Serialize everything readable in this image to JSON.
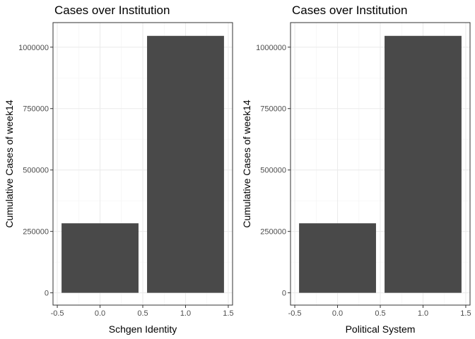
{
  "colors": {
    "bar": "#494949",
    "panel_border": "#333333",
    "grid_major": "#ebebeb",
    "grid_minor": "#f3f3f3",
    "tick": "#333333"
  },
  "chart_data": [
    {
      "type": "bar",
      "title": "Cases over Institution",
      "xlabel": "Schgen Identity",
      "ylabel": "Cumulative Cases of week14",
      "x": [
        0,
        1
      ],
      "bar_width": 0.9,
      "values": [
        283000,
        1046000
      ],
      "xlim": [
        -0.55,
        1.55
      ],
      "ylim": [
        -50000,
        1100000
      ],
      "xticks": [
        -0.5,
        0.0,
        0.5,
        1.0,
        1.5
      ],
      "xtick_labels": [
        "-0.5",
        "0.0",
        "0.5",
        "1.0",
        "1.5"
      ],
      "yticks": [
        0,
        250000,
        500000,
        750000,
        1000000
      ],
      "ytick_labels": [
        "0",
        "250000",
        "500000",
        "750000",
        "1000000"
      ],
      "grid": true,
      "legend": "none"
    },
    {
      "type": "bar",
      "title": "Cases over Institution",
      "xlabel": "Political System",
      "ylabel": "Cumulative Cases of week14",
      "x": [
        0,
        1
      ],
      "bar_width": 0.9,
      "values": [
        283000,
        1046000
      ],
      "xlim": [
        -0.55,
        1.55
      ],
      "ylim": [
        -50000,
        1100000
      ],
      "xticks": [
        -0.5,
        0.0,
        0.5,
        1.0,
        1.5
      ],
      "xtick_labels": [
        "-0.5",
        "0.0",
        "0.5",
        "1.0",
        "1.5"
      ],
      "yticks": [
        0,
        250000,
        500000,
        750000,
        1000000
      ],
      "ytick_labels": [
        "0",
        "250000",
        "500000",
        "750000",
        "1000000"
      ],
      "grid": true,
      "legend": "none"
    }
  ]
}
